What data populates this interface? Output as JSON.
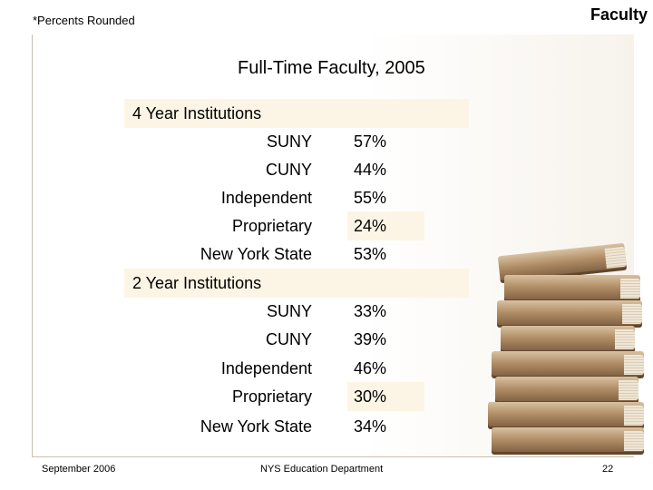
{
  "header": {
    "note": "*Percents Rounded",
    "section": "Faculty"
  },
  "main": {
    "title": "Full-Time Faculty, 2005",
    "groups": [
      {
        "heading": "4 Year Institutions",
        "rows": [
          {
            "label": "SUNY",
            "value": "57%"
          },
          {
            "label": "CUNY",
            "value": "44%"
          },
          {
            "label": "Independent",
            "value": "55%"
          },
          {
            "label": "Proprietary",
            "value": "24%"
          },
          {
            "label": "New York State",
            "value": "53%"
          }
        ]
      },
      {
        "heading": "2 Year Institutions",
        "rows": [
          {
            "label": "SUNY",
            "value": "33%"
          },
          {
            "label": "CUNY",
            "value": "39%"
          },
          {
            "label": "Independent",
            "value": "46%"
          },
          {
            "label": "Proprietary",
            "value": "30%"
          },
          {
            "label": "New York State",
            "value": "34%"
          }
        ]
      }
    ]
  },
  "footer": {
    "date": "September 2006",
    "organization": "NYS Education Department",
    "page": "22"
  },
  "decoration": {
    "image": "stack-of-books-icon"
  },
  "colors": {
    "highlight": "#fcf5e5"
  }
}
